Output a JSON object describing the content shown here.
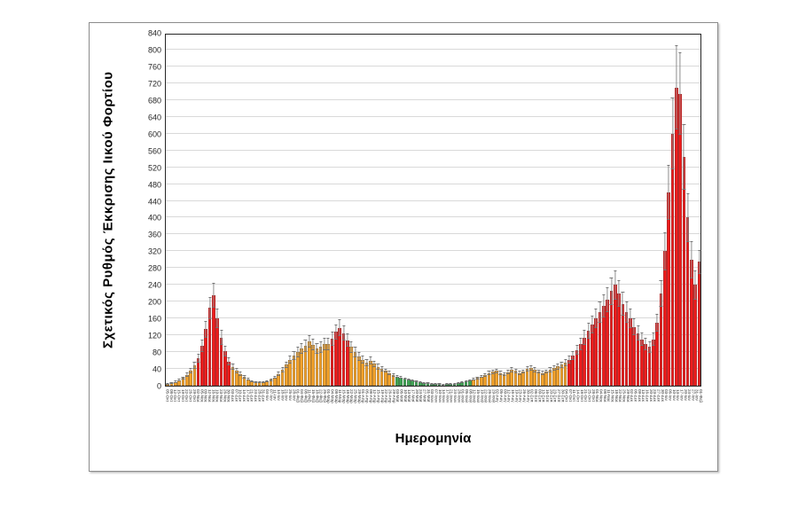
{
  "figure": {
    "y_axis_title": "Σχετικός Ρυθμός Έκκρισης Ιικού Φορτίου",
    "x_axis_title": "Ημερομηνία"
  },
  "colors": {
    "red": "#ee1c1c",
    "orange": "#f5a32b",
    "green": "#3ea553",
    "error_bar": "#8f8f8f",
    "gridline": "#d9d9d9",
    "plot_border": "#262626",
    "figure_border": "#8c8c8c"
  },
  "chart_data": {
    "type": "bar",
    "title": "",
    "xlabel": "Ημερομηνία",
    "ylabel": "Σχετικός Ρυθμός Έκκρισης Ιικού Φορτίου",
    "ylim": [
      0,
      840
    ],
    "y_tick_step": 40,
    "y_ticks": [
      840,
      800,
      760,
      720,
      680,
      640,
      600,
      560,
      520,
      480,
      440,
      400,
      360,
      320,
      280,
      240,
      200,
      160,
      120,
      80,
      40,
      0
    ],
    "grid": true,
    "error_bars": "plus-minus, gray, anchored at bar top",
    "legend": "none",
    "dates": [
      "05-Οκτ",
      "08-Οκτ",
      "12-Οκτ",
      "15-Οκτ",
      "19-Οκτ",
      "22-Οκτ",
      "26-Οκτ",
      "29-Οκτ",
      "02-Νοε",
      "05-Νοε",
      "09-Νοε",
      "12-Νοε",
      "16-Νοε",
      "19-Νοε",
      "23-Νοε",
      "26-Νοε",
      "30-Νοε",
      "03-Δεκ",
      "07-Δεκ",
      "10-Δεκ",
      "14-Δεκ",
      "17-Δεκ",
      "21-Δεκ",
      "24-Δεκ",
      "28-Δεκ",
      "31-Δεκ",
      "04-Ιαν",
      "07-Ιαν",
      "11-Ιαν",
      "14-Ιαν",
      "18-Ιαν",
      "21-Ιαν",
      "25-Ιαν",
      "28-Ιαν",
      "01-Φεβ",
      "04-Φεβ",
      "08-Φεβ",
      "11-Φεβ",
      "15-Φεβ",
      "18-Φεβ",
      "22-Φεβ",
      "25-Φεβ",
      "01-Μαρ",
      "04-Μαρ",
      "08-Μαρ",
      "11-Μαρ",
      "15-Μαρ",
      "18-Μαρ",
      "22-Μαρ",
      "25-Μαρ",
      "29-Μαρ",
      "01-Απρ",
      "05-Απρ",
      "08-Απρ",
      "12-Απρ",
      "15-Απρ",
      "19-Απρ",
      "22-Απρ",
      "26-Απρ",
      "29-Απρ",
      "03-Μαϊ",
      "06-Μαϊ",
      "10-Μαϊ",
      "13-Μαϊ",
      "17-Μαϊ",
      "20-Μαϊ",
      "24-Μαϊ",
      "27-Μαϊ",
      "31-Μαϊ",
      "03-Ιουν",
      "07-Ιουν",
      "10-Ιουν",
      "14-Ιουν",
      "17-Ιουν",
      "21-Ιουν",
      "24-Ιουν",
      "28-Ιουν",
      "01-Ιουλ",
      "05-Ιουλ",
      "08-Ιουλ",
      "12-Ιουλ",
      "15-Ιουλ",
      "19-Ιουλ",
      "22-Ιουλ",
      "26-Ιουλ",
      "29-Ιουλ",
      "02-Αυγ",
      "05-Αυγ",
      "09-Αυγ",
      "12-Αυγ",
      "16-Αυγ",
      "19-Αυγ",
      "23-Αυγ",
      "26-Αυγ",
      "30-Αυγ",
      "02-Σεπ",
      "06-Σεπ",
      "09-Σεπ",
      "13-Σεπ",
      "16-Σεπ",
      "20-Σεπ",
      "23-Σεπ",
      "27-Σεπ",
      "30-Σεπ",
      "04-Οκτ",
      "07-Οκτ",
      "11-Οκτ",
      "14-Οκτ",
      "18-Οκτ",
      "21-Οκτ",
      "25-Οκτ",
      "28-Οκτ",
      "01-Νοε",
      "04-Νοε",
      "08-Νοε",
      "11-Νοε",
      "15-Νοε",
      "18-Νοε",
      "22-Νοε",
      "25-Νοε",
      "29-Νοε",
      "02-Δεκ",
      "06-Δεκ",
      "09-Δεκ",
      "13-Δεκ",
      "16-Δεκ",
      "20-Δεκ",
      "23-Δεκ",
      "27-Δεκ",
      "30-Δεκ",
      "03-Ιαν",
      "06-Ιαν",
      "10-Ιαν",
      "13-Ιαν",
      "17-Ιαν",
      "20-Ιαν",
      "24-Ιαν",
      "27-Ιαν",
      "31-Ιαν",
      "01-Φεβ"
    ],
    "values": [
      4,
      6,
      9,
      13,
      18,
      26,
      36,
      48,
      65,
      95,
      135,
      185,
      215,
      160,
      115,
      82,
      58,
      45,
      36,
      28,
      21,
      15,
      11,
      9,
      8,
      8,
      10,
      14,
      20,
      28,
      38,
      50,
      62,
      72,
      80,
      88,
      95,
      105,
      98,
      88,
      92,
      100,
      100,
      112,
      128,
      138,
      125,
      108,
      92,
      80,
      70,
      62,
      55,
      60,
      52,
      45,
      40,
      36,
      30,
      26,
      22,
      20,
      17,
      14,
      12,
      10,
      8,
      7,
      6,
      5,
      4,
      4,
      3,
      4,
      4,
      5,
      6,
      8,
      10,
      12,
      15,
      18,
      22,
      26,
      30,
      33,
      35,
      30,
      27,
      32,
      38,
      35,
      30,
      34,
      40,
      42,
      38,
      34,
      30,
      34,
      38,
      42,
      46,
      50,
      55,
      62,
      72,
      85,
      100,
      115,
      130,
      145,
      160,
      175,
      190,
      205,
      225,
      240,
      220,
      195,
      175,
      160,
      140,
      125,
      110,
      100,
      92,
      110,
      150,
      220,
      320,
      460,
      600,
      710,
      695,
      545,
      400,
      300,
      240,
      295
    ],
    "errors": [
      2,
      2,
      3,
      3,
      4,
      5,
      6,
      8,
      10,
      14,
      20,
      27,
      30,
      23,
      17,
      12,
      9,
      7,
      6,
      5,
      4,
      3,
      2,
      2,
      2,
      2,
      2,
      3,
      4,
      5,
      6,
      8,
      9,
      11,
      12,
      13,
      14,
      15,
      14,
      13,
      13,
      15,
      15,
      16,
      18,
      20,
      18,
      16,
      13,
      12,
      10,
      9,
      8,
      9,
      8,
      7,
      6,
      5,
      5,
      4,
      4,
      3,
      3,
      2,
      2,
      2,
      2,
      2,
      2,
      2,
      2,
      2,
      2,
      2,
      2,
      2,
      2,
      2,
      2,
      2,
      3,
      3,
      4,
      4,
      5,
      5,
      5,
      5,
      4,
      5,
      6,
      5,
      5,
      5,
      6,
      6,
      6,
      5,
      5,
      5,
      6,
      6,
      7,
      8,
      8,
      9,
      11,
      12,
      15,
      17,
      19,
      21,
      23,
      25,
      28,
      30,
      33,
      35,
      32,
      28,
      26,
      23,
      20,
      18,
      16,
      15,
      14,
      16,
      22,
      32,
      46,
      65,
      85,
      100,
      98,
      78,
      58,
      44,
      35,
      28
    ],
    "color_segments": [
      {
        "color": "orange",
        "count": 8
      },
      {
        "color": "red",
        "count": 9
      },
      {
        "color": "orange",
        "count": 26
      },
      {
        "color": "red",
        "count": 5
      },
      {
        "color": "orange",
        "count": 12
      },
      {
        "color": "green",
        "count": 20
      },
      {
        "color": "orange",
        "count": 25
      },
      {
        "color": "red",
        "count": 35
      }
    ]
  }
}
